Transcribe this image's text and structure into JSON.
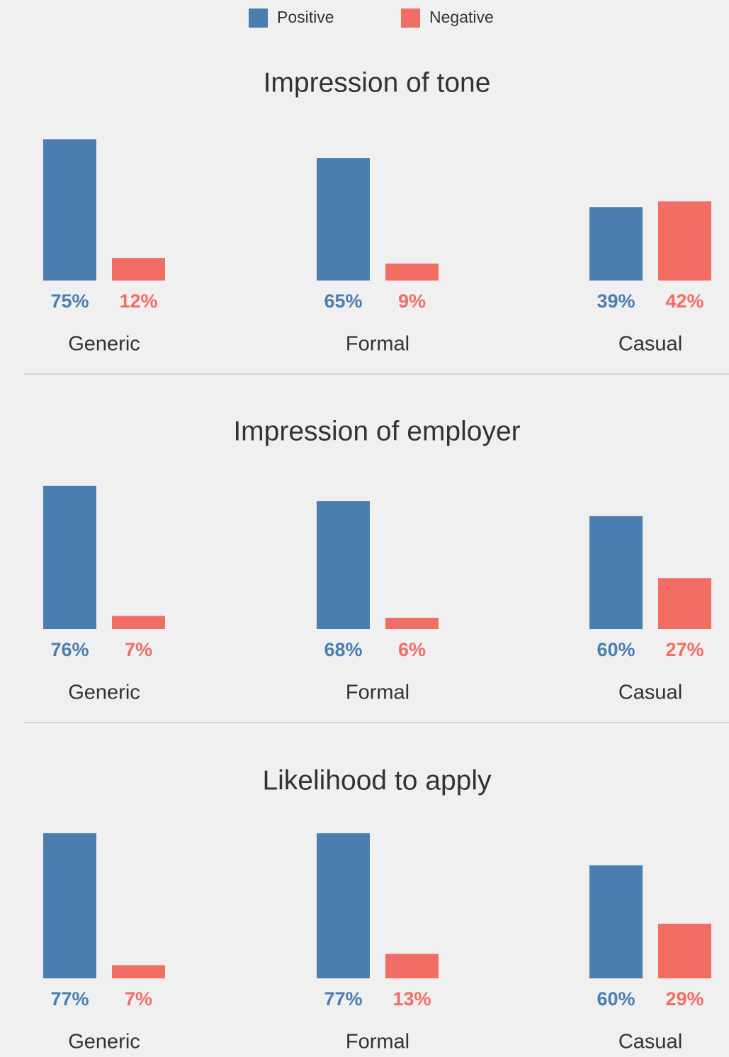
{
  "chart_data": [
    {
      "type": "bar",
      "title": "Impression of tone",
      "categories": [
        "Generic",
        "Formal",
        "Casual"
      ],
      "series": [
        {
          "name": "Positive",
          "color": "#4a7eb0",
          "values": [
            75,
            65,
            39
          ],
          "value_labels": [
            "75%",
            "65%",
            "39%"
          ]
        },
        {
          "name": "Negative",
          "color": "#f26d63",
          "values": [
            12,
            9,
            42
          ],
          "value_labels": [
            "12%",
            "9%",
            "42%"
          ]
        }
      ]
    },
    {
      "type": "bar",
      "title": "Impression of employer",
      "categories": [
        "Generic",
        "Formal",
        "Casual"
      ],
      "series": [
        {
          "name": "Positive",
          "color": "#4a7eb0",
          "values": [
            76,
            68,
            60
          ],
          "value_labels": [
            "76%",
            "68%",
            "60%"
          ]
        },
        {
          "name": "Negative",
          "color": "#f26d63",
          "values": [
            7,
            6,
            27
          ],
          "value_labels": [
            "7%",
            "6%",
            "27%"
          ]
        }
      ]
    },
    {
      "type": "bar",
      "title": "Likelihood to apply",
      "categories": [
        "Generic",
        "Formal",
        "Casual"
      ],
      "series": [
        {
          "name": "Positive",
          "color": "#4a7eb0",
          "values": [
            77,
            77,
            60
          ],
          "value_labels": [
            "77%",
            "77%",
            "60%"
          ]
        },
        {
          "name": "Negative",
          "color": "#f26d63",
          "values": [
            7,
            13,
            29
          ],
          "value_labels": [
            "7%",
            "13%",
            "29%"
          ]
        }
      ]
    }
  ]
}
